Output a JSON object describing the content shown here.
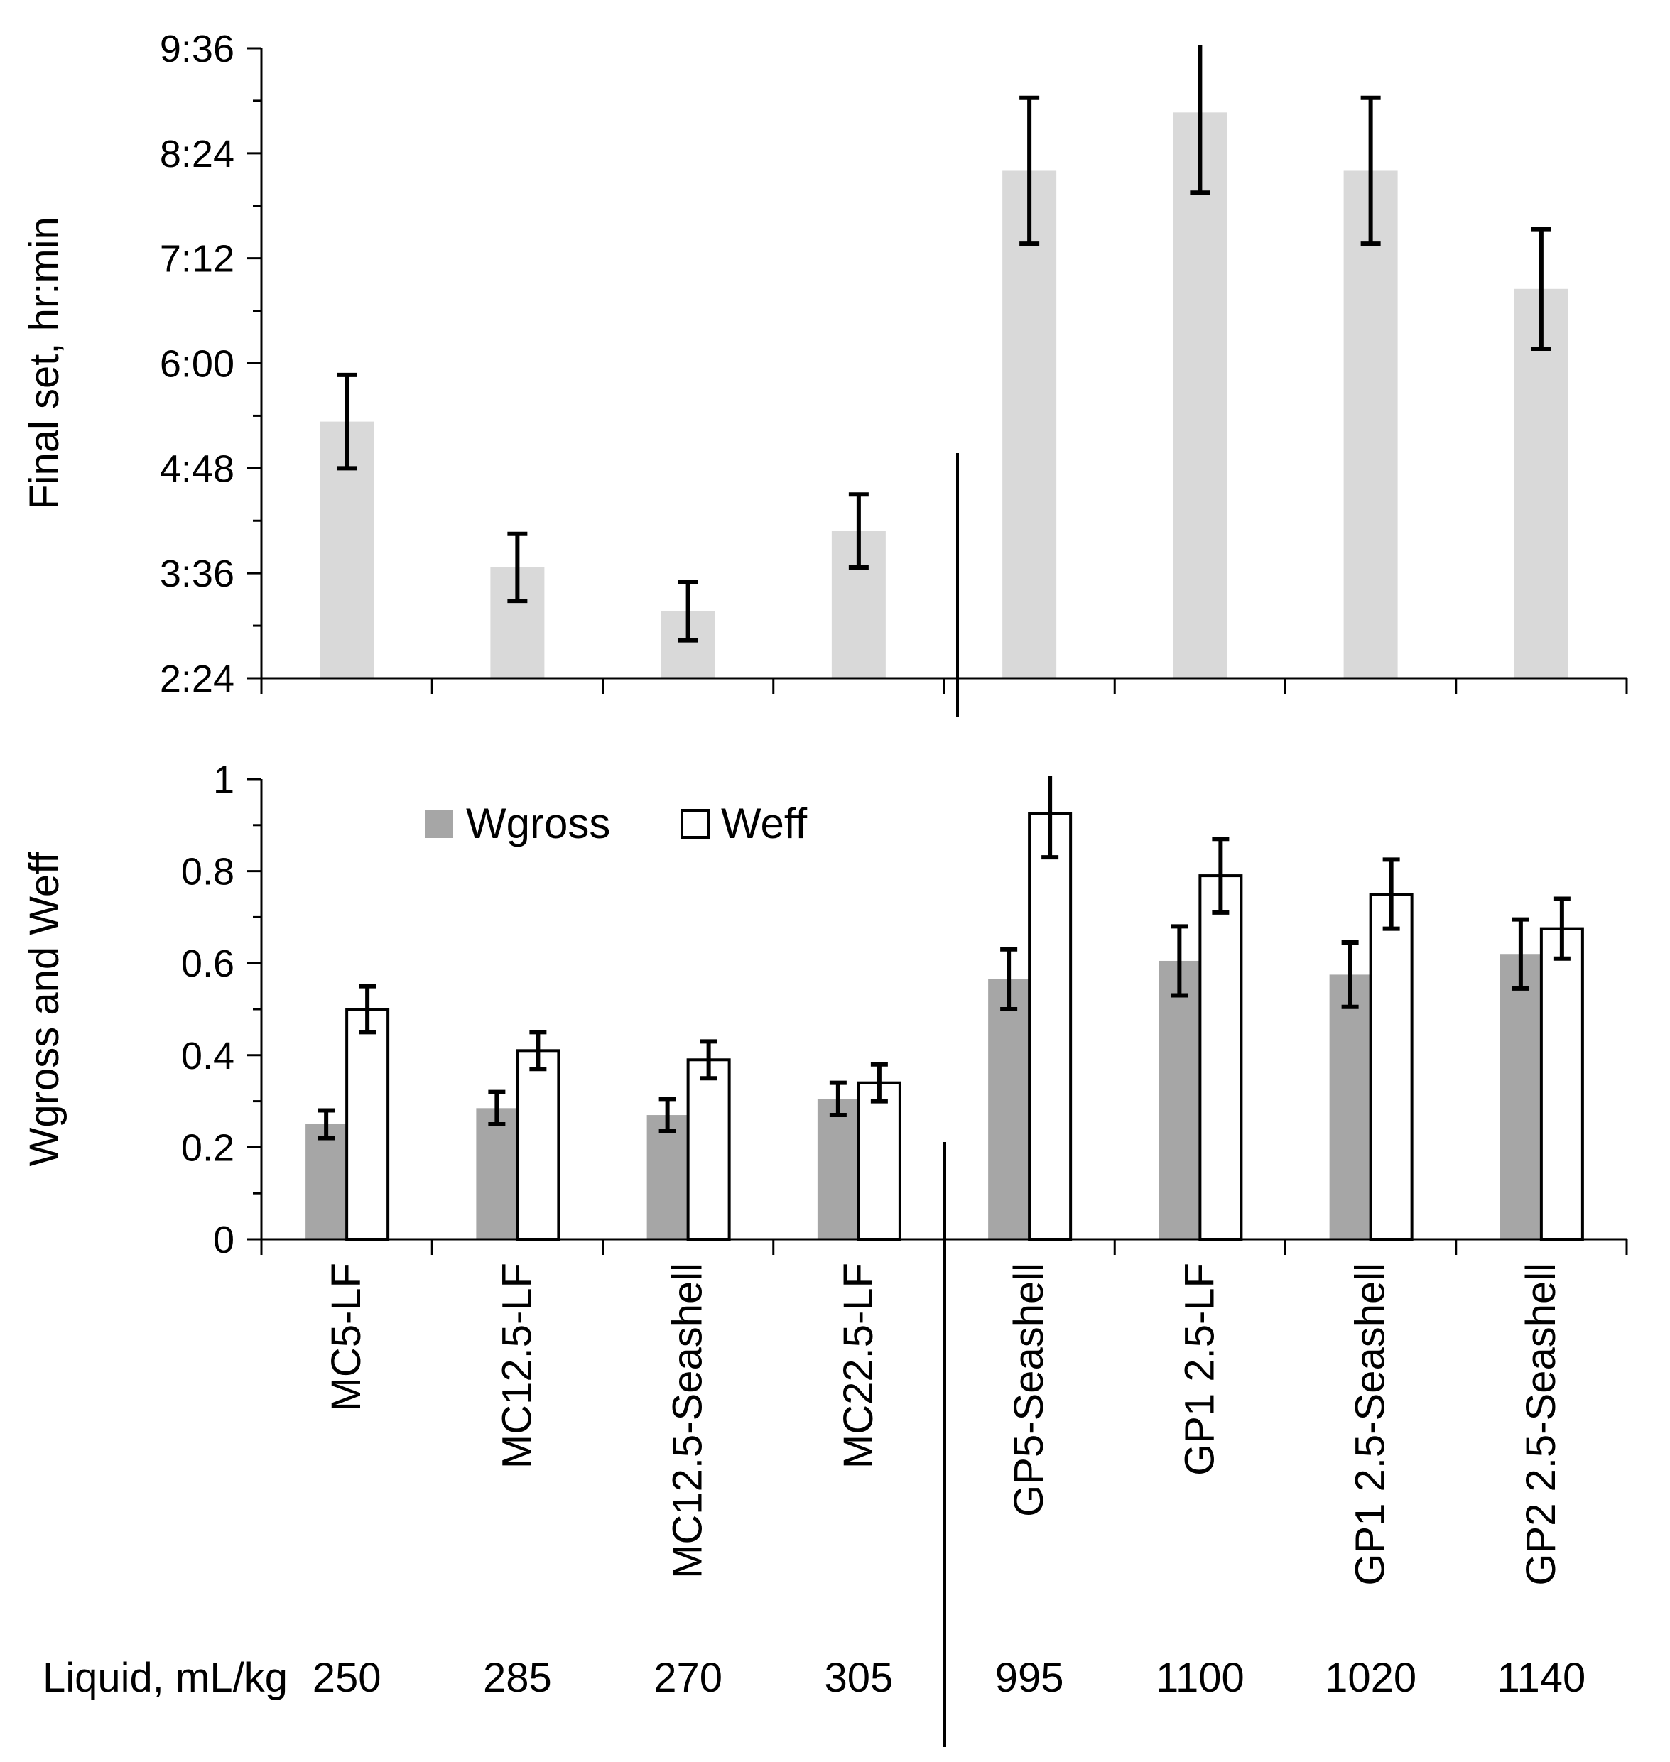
{
  "chart_data": [
    {
      "type": "bar",
      "title": "",
      "xlabel": "",
      "ylabel": "Final set, hr:min",
      "y_unit": "minutes",
      "ylim": [
        144,
        576
      ],
      "yticks": [
        144,
        216,
        288,
        360,
        432,
        504,
        576
      ],
      "ytick_labels": [
        "2:24",
        "3:36",
        "4:48",
        "6:00",
        "7:12",
        "8:24",
        "9:36"
      ],
      "grid": false,
      "categories": [
        "MC5-LF",
        "MC12.5-LF",
        "MC12.5-Seashell",
        "MC22.5-LF",
        "GP5-Seashell",
        "GP1 2.5-LF",
        "GP1 2.5-Seashell",
        "GP2 2.5-Seashell"
      ],
      "series": [
        {
          "name": "Final set",
          "color": "#d9d9d9",
          "values": [
            320,
            220,
            190,
            245,
            492,
            532,
            492,
            411
          ],
          "errors": [
            32,
            23,
            20,
            25,
            50,
            55,
            50,
            41
          ]
        }
      ]
    },
    {
      "type": "bar",
      "title": "",
      "xlabel": "",
      "ylabel": "Wgross and Weff",
      "ylim": [
        0,
        1
      ],
      "yticks": [
        0,
        0.2,
        0.4,
        0.6,
        0.8,
        1
      ],
      "ytick_labels": [
        "0",
        "0.2",
        "0.4",
        "0.6",
        "0.8",
        "1"
      ],
      "grid": false,
      "legend_position": "top-left",
      "categories": [
        "MC5-LF",
        "MC12.5-LF",
        "MC12.5-Seashell",
        "MC22.5-LF",
        "GP5-Seashell",
        "GP1 2.5-LF",
        "GP1 2.5-Seashell",
        "GP2 2.5-Seashell"
      ],
      "series": [
        {
          "name": "Wgross",
          "color": "#a6a6a6",
          "values": [
            0.25,
            0.285,
            0.27,
            0.305,
            0.565,
            0.605,
            0.575,
            0.62
          ],
          "errors": [
            0.03,
            0.035,
            0.035,
            0.035,
            0.065,
            0.075,
            0.07,
            0.075
          ]
        },
        {
          "name": "Weff",
          "color": "#ffffff",
          "values": [
            0.5,
            0.41,
            0.39,
            0.34,
            0.925,
            0.79,
            0.75,
            0.675
          ],
          "errors": [
            0.05,
            0.04,
            0.04,
            0.04,
            0.095,
            0.08,
            0.075,
            0.065
          ]
        }
      ]
    }
  ],
  "liquid_row": {
    "label": "Liquid, mL/kg",
    "values": [
      "250",
      "285",
      "270",
      "305",
      "995",
      "1100",
      "1020",
      "1140"
    ]
  }
}
